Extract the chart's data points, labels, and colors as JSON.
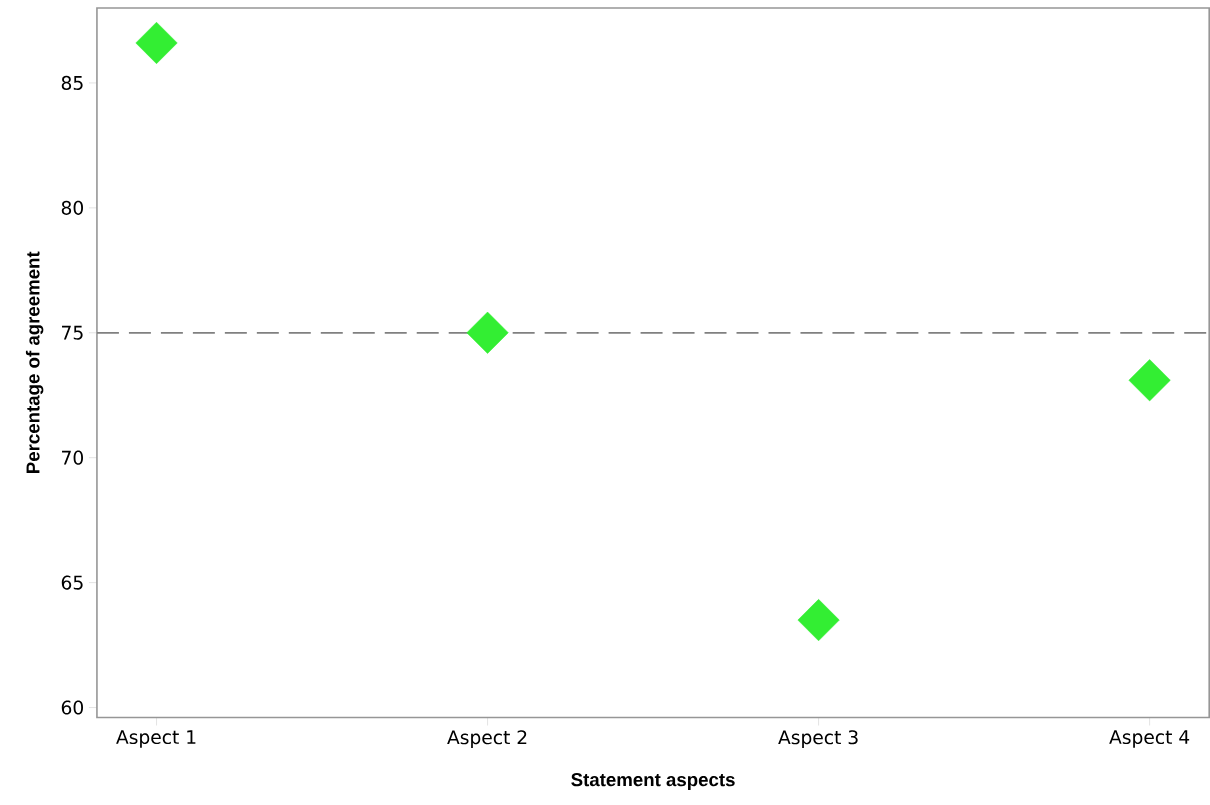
{
  "chart_data": {
    "type": "scatter",
    "xlabel": "Statement aspects",
    "ylabel": "Percentage of agreement",
    "categories": [
      "Aspect 1",
      "Aspect 2",
      "Aspect 3",
      "Aspect 4"
    ],
    "series": [
      {
        "color": "#33ee33",
        "values": [
          86.6,
          75.0,
          63.5,
          73.1
        ]
      }
    ],
    "ylim": [
      59.6,
      88
    ],
    "yticks": [
      60,
      65,
      70,
      75,
      80,
      85
    ],
    "marker": "diamond",
    "grid": false,
    "ref_lines": [
      {
        "axis": "y",
        "value": 75,
        "color": "#808080",
        "line_style": "dashed"
      }
    ]
  }
}
